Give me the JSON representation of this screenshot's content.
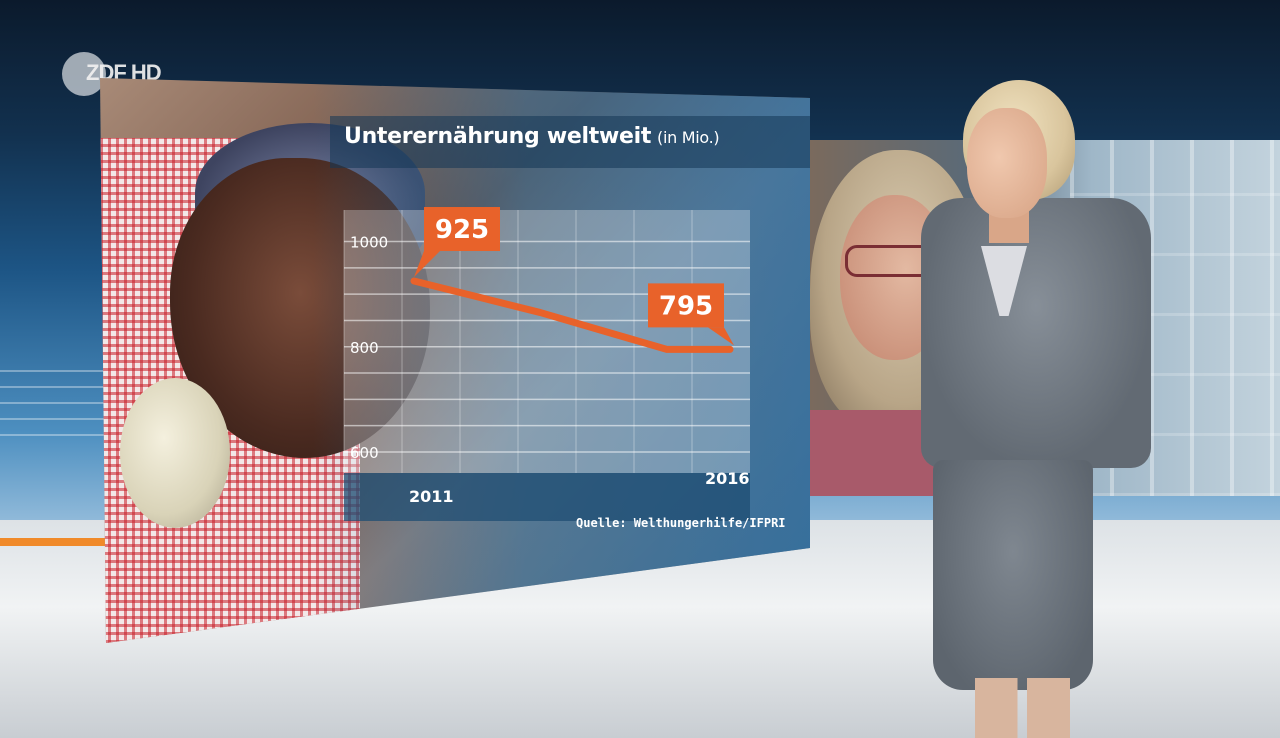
{
  "broadcaster": {
    "logo_text": "ZDF HD"
  },
  "chart_data": {
    "type": "line",
    "title": "Unterernährung weltweit",
    "title_unit": "(in Mio.)",
    "source": "Quelle: Welthungerhilfe/IFPRI",
    "x": [
      "2011",
      "2012",
      "2013",
      "2014",
      "2015",
      "2016"
    ],
    "x_tick_labels": [
      "2011",
      "2016"
    ],
    "series": [
      {
        "values": [
          925,
          895,
          865,
          830,
          795,
          795
        ]
      }
    ],
    "data_labels": [
      {
        "x": "2011",
        "value": "925"
      },
      {
        "x": "2016",
        "value": "795"
      }
    ],
    "y_ticks": [
      600,
      800,
      1000
    ],
    "ylim": [
      560,
      1060
    ],
    "grid": true,
    "colors": {
      "line": "#e8622a",
      "label_box": "#e8622a",
      "plot_background": "#ffffff",
      "axis_band": "#1f4e73"
    }
  }
}
